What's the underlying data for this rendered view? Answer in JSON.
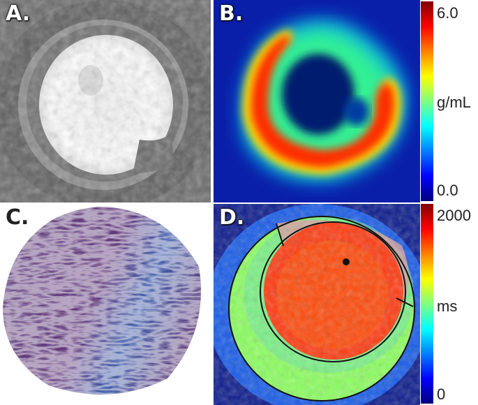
{
  "panels": {
    "a": {
      "label": "A."
    },
    "b": {
      "label": "B.",
      "colorbar": {
        "max": "6.0",
        "unit": "g/mL",
        "min": "0.0"
      }
    },
    "c": {
      "label": "C."
    },
    "d": {
      "label": "D.",
      "colorbar": {
        "max": "2000",
        "unit": "ms",
        "min": "0"
      }
    }
  },
  "colors": {
    "jet_high": "#800000",
    "jet_mid": "#80ff80",
    "jet_low": "#000080",
    "trichrome_purple": "#5b3a78",
    "trichrome_blue": "#2f5fb3"
  }
}
